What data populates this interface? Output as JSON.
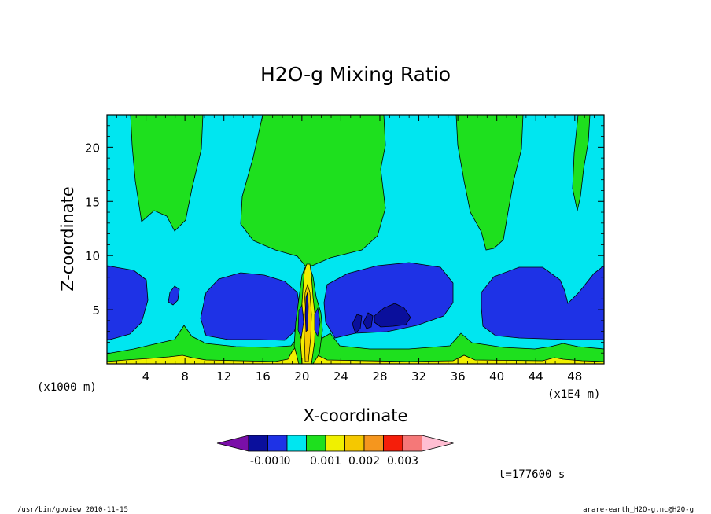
{
  "chart_data": {
    "type": "heatmap",
    "title": "H2O-g Mixing Ratio",
    "xlabel": "X-coordinate",
    "ylabel": "Z-coordinate",
    "x_unit_left": "(x1000 m)",
    "x_unit_right": "(x1E4 m)",
    "x_ticks": [
      "4",
      "8",
      "12",
      "16",
      "20",
      "24",
      "28",
      "32",
      "36",
      "40",
      "44",
      "48"
    ],
    "x_tick_values": [
      4,
      8,
      12,
      16,
      20,
      24,
      28,
      32,
      36,
      40,
      44,
      48
    ],
    "y_ticks": [
      "5",
      "10",
      "15",
      "20"
    ],
    "y_tick_values": [
      5,
      10,
      15,
      20
    ],
    "xlim": [
      0,
      51
    ],
    "ylim": [
      0,
      23
    ],
    "colorbar": {
      "colors": [
        "#7a0fa8",
        "#0a0f9c",
        "#1e32e6",
        "#00e6f0",
        "#1ee01e",
        "#f0f000",
        "#f5c800",
        "#f5961e",
        "#f51e0a",
        "#f57878",
        "#ffbed2"
      ],
      "labels": [
        "-0.001",
        "0",
        "0.001",
        "0.002",
        "0.003"
      ]
    },
    "time_label": "t=177600 s"
  },
  "footer": {
    "left": "/usr/bin/gpview   2010-11-15",
    "right": "arare-earth_H2O-g.nc@H2O-g"
  }
}
